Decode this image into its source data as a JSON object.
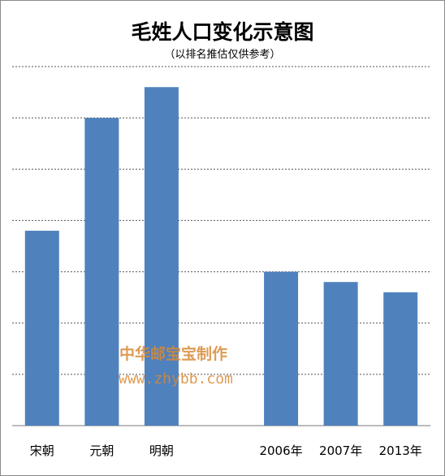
{
  "chart_data": {
    "type": "bar",
    "title": "毛姓人口变化示意图",
    "subtitle": "（以排名推估仅供参考）",
    "categories": [
      "宋朝",
      "元朝",
      "明朝",
      "",
      "2006年",
      "2007年",
      "2013年"
    ],
    "values": [
      3.8,
      6.0,
      6.6,
      null,
      3.0,
      2.8,
      2.6
    ],
    "ylim": [
      0,
      7
    ],
    "y_tick_labels_shown": false,
    "grid": true,
    "grid_style": "dashed",
    "bar_color": "#4f81bd",
    "legend": "none"
  },
  "watermark": {
    "line1": "中华邮宝宝制作",
    "line2": "www.zhybb.com"
  }
}
